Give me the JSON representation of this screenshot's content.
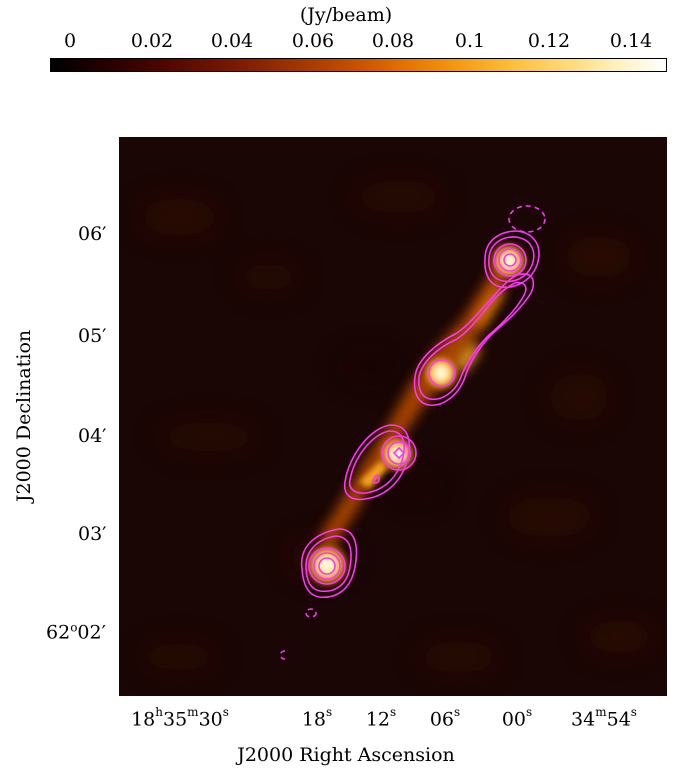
{
  "colorbar": {
    "unit": "(Jy/beam)",
    "ticks": [
      "0",
      "0.02",
      "0.04",
      "0.06",
      "0.08",
      "0.1",
      "0.12",
      "0.14"
    ],
    "range": [
      0,
      0.15
    ],
    "colormap": "hot"
  },
  "axes": {
    "xlabel": "J2000 Right Ascension",
    "ylabel": "J2000 Declination",
    "dec_ticks": [
      {
        "deg": "",
        "min": "06′"
      },
      {
        "deg": "",
        "min": "05′"
      },
      {
        "deg": "",
        "min": "04′"
      },
      {
        "deg": "",
        "min": "03′"
      },
      {
        "deg": "62",
        "deg_sym": "o",
        "min": "02′"
      }
    ],
    "ra_ticks": [
      {
        "h": "18",
        "hs": "h",
        "m": "35",
        "ms": "m",
        "s": "30",
        "ss": "s"
      },
      {
        "s": "18",
        "ss": "s"
      },
      {
        "s": "12",
        "ss": "s"
      },
      {
        "s": "06",
        "ss": "s"
      },
      {
        "s": "00",
        "ss": "s"
      },
      {
        "m": "34",
        "ms": "m",
        "s": "54",
        "ss": "s"
      }
    ]
  },
  "colors": {
    "contour": "#ff33ff",
    "background": "#1a0604"
  }
}
